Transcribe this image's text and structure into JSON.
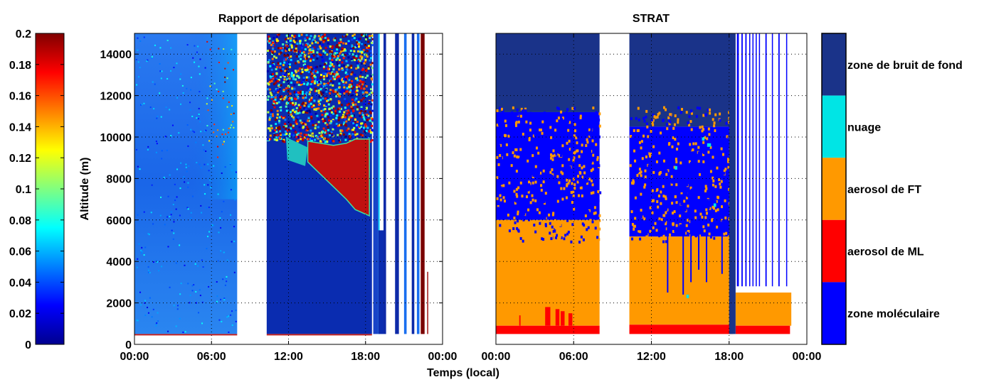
{
  "chart_data": [
    {
      "type": "heatmap",
      "title": "Rapport de dépolarisation",
      "xlabel": "",
      "ylabel": "Altitude (m)",
      "xticks": [
        "00:00",
        "06:00",
        "12:00",
        "18:00",
        "00:00"
      ],
      "yticks": [
        "0",
        "2000",
        "4000",
        "6000",
        "8000",
        "10000",
        "12000",
        "14000"
      ],
      "xlim_hours": [
        0,
        24
      ],
      "ylim": [
        0,
        15000
      ],
      "grid": true,
      "colorbar": {
        "label_ticks": [
          "0",
          "0.02",
          "0.04",
          "0.06",
          "0.08",
          "0.1",
          "0.12",
          "0.14",
          "0.16",
          "0.18",
          "0.2"
        ],
        "range": [
          0,
          0.2
        ],
        "colormap": "jet"
      },
      "no_data_intervals_hours": [
        [
          8.0,
          10.3
        ]
      ],
      "approx_regions": [
        {
          "t": [
            0,
            8
          ],
          "alt": [
            500,
            15000
          ],
          "value": 0.03
        },
        {
          "t": [
            10.3,
            18.5
          ],
          "alt": [
            500,
            6000
          ],
          "value": 0.01
        },
        {
          "t": [
            13.5,
            18.3
          ],
          "alt": [
            6500,
            10000
          ],
          "value": 0.16
        },
        {
          "t": [
            10.3,
            18.5
          ],
          "alt": [
            10000,
            15000
          ],
          "value": 0.1
        }
      ]
    },
    {
      "type": "heatmap",
      "title": "STRAT",
      "xlabel": "Temps (local)",
      "ylabel": "",
      "xticks": [
        "00:00",
        "06:00",
        "12:00",
        "18:00",
        "00:00"
      ],
      "xlim_hours": [
        0,
        24
      ],
      "ylim": [
        0,
        15000
      ],
      "grid": true,
      "categories": [
        {
          "name": "zone moléculaire",
          "color": "#0000ff"
        },
        {
          "name": "aerosol de ML",
          "color": "#ff0000"
        },
        {
          "name": "aerosol de FT",
          "color": "#ff9900"
        },
        {
          "name": "nuage",
          "color": "#00e5e5"
        },
        {
          "name": "zone de bruit de fond",
          "color": "#1a3389"
        }
      ],
      "no_data_intervals_hours": [
        [
          8.0,
          10.3
        ]
      ],
      "approx_layers": [
        {
          "category": "aerosol de ML",
          "alt": [
            500,
            900
          ]
        },
        {
          "category": "aerosol de FT",
          "alt": [
            900,
            6000
          ]
        },
        {
          "category": "zone moléculaire",
          "alt": [
            6000,
            11000
          ]
        },
        {
          "category": "zone de bruit de fond",
          "alt": [
            11000,
            15000
          ]
        }
      ]
    }
  ]
}
